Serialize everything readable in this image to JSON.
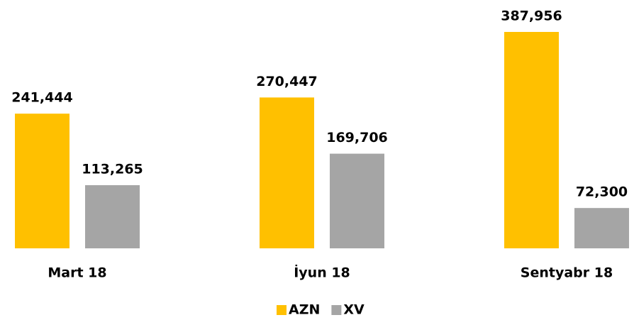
{
  "chart_data": {
    "type": "bar",
    "categories": [
      "Mart 18",
      "İyun 18",
      "Sentyabr 18"
    ],
    "series": [
      {
        "name": "AZN",
        "color": "#ffc000",
        "values": [
          241444,
          270447,
          387956
        ],
        "value_labels": [
          "241,444",
          "270,447",
          "387,956"
        ]
      },
      {
        "name": "XV",
        "color": "#a5a5a5",
        "values": [
          113265,
          169706,
          72300
        ],
        "value_labels": [
          "113,265",
          "169,706",
          "72,300"
        ]
      }
    ],
    "legend": "bottom"
  }
}
